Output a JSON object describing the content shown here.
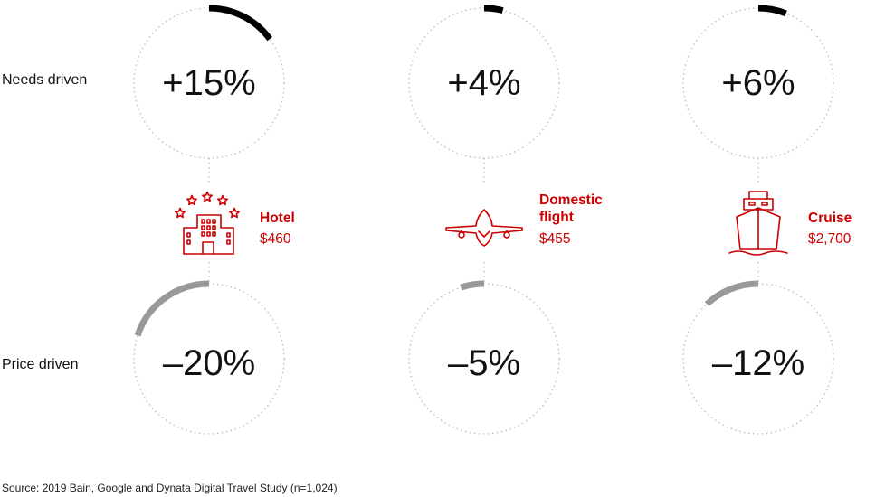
{
  "chart_data": {
    "type": "radial",
    "rows": [
      "Needs driven",
      "Price driven"
    ],
    "categories": [
      {
        "name": "Hotel",
        "price": "$460",
        "icon": "hotel-icon",
        "needs": 15,
        "price_driven": -20,
        "needs_label": "+15%",
        "price_label": "–20%"
      },
      {
        "name": "Domestic flight",
        "name_lines": [
          "Domestic",
          "flight"
        ],
        "price": "$455",
        "icon": "airplane-icon",
        "needs": 4,
        "price_driven": -5,
        "needs_label": "+4%",
        "price_label": "–5%"
      },
      {
        "name": "Cruise",
        "price": "$2,700",
        "icon": "cruise-ship-icon",
        "needs": 6,
        "price_driven": -12,
        "needs_label": "+6%",
        "price_label": "–12%"
      }
    ],
    "scale_max": 100
  },
  "source": "Source: 2019 Bain, Google and Dynata Digital Travel Study (n=1,024)",
  "colors": {
    "needs_arc": "#000000",
    "price_arc": "#999999",
    "accent": "#cc0000",
    "dotted": "#bbbbbb"
  }
}
